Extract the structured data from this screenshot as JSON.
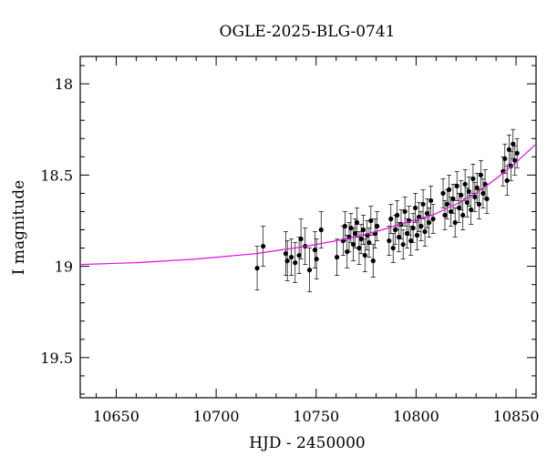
{
  "chart_data": {
    "type": "scatter",
    "title": "OGLE-2025-BLG-0741",
    "xlabel": "HJD - 2450000",
    "ylabel": "I magnitude",
    "xlim": [
      10632,
      10860
    ],
    "ylim": [
      19.72,
      17.85
    ],
    "y_inverted": true,
    "x_ticks": [
      10650,
      10700,
      10750,
      10800,
      10850
    ],
    "x_tick_labels": [
      "10650",
      "10700",
      "10750",
      "10800",
      "10850"
    ],
    "y_ticks": [
      18.0,
      18.5,
      19.0,
      19.5
    ],
    "y_tick_labels": [
      "18",
      "18.5",
      "19",
      "19.5"
    ],
    "grid": false,
    "colors": {
      "data": "#000000",
      "model": "#e010e0"
    },
    "model": {
      "name": "",
      "points": [
        [
          10632,
          18.99
        ],
        [
          10660,
          18.98
        ],
        [
          10690,
          18.96
        ],
        [
          10720,
          18.93
        ],
        [
          10745,
          18.89
        ],
        [
          10765,
          18.85
        ],
        [
          10780,
          18.81
        ],
        [
          10795,
          18.76
        ],
        [
          10808,
          18.72
        ],
        [
          10820,
          18.66
        ],
        [
          10830,
          18.6
        ],
        [
          10840,
          18.52
        ],
        [
          10850,
          18.43
        ],
        [
          10860,
          18.33
        ]
      ]
    },
    "series": [
      {
        "name": "",
        "points": [
          [
            10720.5,
            19.01,
            0.12
          ],
          [
            10723.5,
            18.89,
            0.11
          ],
          [
            10734.8,
            18.93,
            0.12
          ],
          [
            10735.6,
            18.97,
            0.11
          ],
          [
            10737.6,
            18.95,
            0.1
          ],
          [
            10739.5,
            18.98,
            0.11
          ],
          [
            10741.5,
            18.94,
            0.1
          ],
          [
            10742.4,
            18.85,
            0.11
          ],
          [
            10744.5,
            18.89,
            0.1
          ],
          [
            10746.7,
            19.02,
            0.12
          ],
          [
            10749.4,
            18.91,
            0.1
          ],
          [
            10750.2,
            18.96,
            0.11
          ],
          [
            10752.5,
            18.8,
            0.1
          ],
          [
            10760.4,
            18.95,
            0.1
          ],
          [
            10763.5,
            18.86,
            0.08
          ],
          [
            10764.4,
            18.78,
            0.08
          ],
          [
            10765.5,
            18.92,
            0.09
          ],
          [
            10766.5,
            18.84,
            0.08
          ],
          [
            10767.4,
            18.79,
            0.08
          ],
          [
            10768.6,
            18.88,
            0.09
          ],
          [
            10769.5,
            18.82,
            0.08
          ],
          [
            10770.4,
            18.76,
            0.08
          ],
          [
            10771.5,
            18.9,
            0.09
          ],
          [
            10772.5,
            18.85,
            0.08
          ],
          [
            10773.6,
            18.8,
            0.08
          ],
          [
            10774.4,
            18.94,
            0.09
          ],
          [
            10775.5,
            18.83,
            0.08
          ],
          [
            10776.5,
            18.87,
            0.08
          ],
          [
            10777.4,
            18.75,
            0.08
          ],
          [
            10778.5,
            18.97,
            0.09
          ],
          [
            10779.4,
            18.82,
            0.08
          ],
          [
            10780.5,
            18.78,
            0.08
          ],
          [
            10786.5,
            18.86,
            0.08
          ],
          [
            10787.4,
            18.74,
            0.08
          ],
          [
            10788.5,
            18.9,
            0.08
          ],
          [
            10789.6,
            18.8,
            0.08
          ],
          [
            10790.5,
            18.72,
            0.08
          ],
          [
            10791.4,
            18.84,
            0.08
          ],
          [
            10792.5,
            18.77,
            0.08
          ],
          [
            10793.5,
            18.88,
            0.08
          ],
          [
            10794.4,
            18.7,
            0.08
          ],
          [
            10795.5,
            18.82,
            0.08
          ],
          [
            10796.5,
            18.75,
            0.08
          ],
          [
            10797.4,
            18.86,
            0.08
          ],
          [
            10798.5,
            18.79,
            0.08
          ],
          [
            10799.6,
            18.68,
            0.08
          ],
          [
            10800.5,
            18.83,
            0.08
          ],
          [
            10801.4,
            18.73,
            0.08
          ],
          [
            10802.5,
            18.78,
            0.08
          ],
          [
            10803.5,
            18.66,
            0.08
          ],
          [
            10804.4,
            18.81,
            0.08
          ],
          [
            10805.5,
            18.71,
            0.08
          ],
          [
            10806.5,
            18.76,
            0.08
          ],
          [
            10807.4,
            18.64,
            0.08
          ],
          [
            10808.5,
            18.74,
            0.08
          ],
          [
            10813.5,
            18.6,
            0.08
          ],
          [
            10814.4,
            18.72,
            0.08
          ],
          [
            10815.5,
            18.66,
            0.08
          ],
          [
            10816.5,
            18.58,
            0.08
          ],
          [
            10817.4,
            18.7,
            0.08
          ],
          [
            10818.5,
            18.63,
            0.08
          ],
          [
            10819.5,
            18.76,
            0.08
          ],
          [
            10820.4,
            18.56,
            0.08
          ],
          [
            10821.5,
            18.68,
            0.08
          ],
          [
            10822.5,
            18.61,
            0.08
          ],
          [
            10823.4,
            18.72,
            0.08
          ],
          [
            10824.5,
            18.55,
            0.08
          ],
          [
            10825.5,
            18.65,
            0.08
          ],
          [
            10826.4,
            18.59,
            0.08
          ],
          [
            10827.5,
            18.69,
            0.08
          ],
          [
            10828.5,
            18.52,
            0.08
          ],
          [
            10829.4,
            18.62,
            0.08
          ],
          [
            10830.5,
            18.57,
            0.08
          ],
          [
            10831.5,
            18.66,
            0.08
          ],
          [
            10832.4,
            18.5,
            0.08
          ],
          [
            10833.5,
            18.6,
            0.08
          ],
          [
            10834.5,
            18.55,
            0.08
          ],
          [
            10835.4,
            18.63,
            0.08
          ],
          [
            10843.5,
            18.48,
            0.08
          ],
          [
            10844.4,
            18.41,
            0.08
          ],
          [
            10845.5,
            18.53,
            0.08
          ],
          [
            10846.5,
            18.36,
            0.08
          ],
          [
            10847.4,
            18.45,
            0.08
          ],
          [
            10848.5,
            18.33,
            0.08
          ],
          [
            10849.4,
            18.42,
            0.08
          ],
          [
            10850.5,
            18.38,
            0.08
          ]
        ]
      }
    ]
  }
}
